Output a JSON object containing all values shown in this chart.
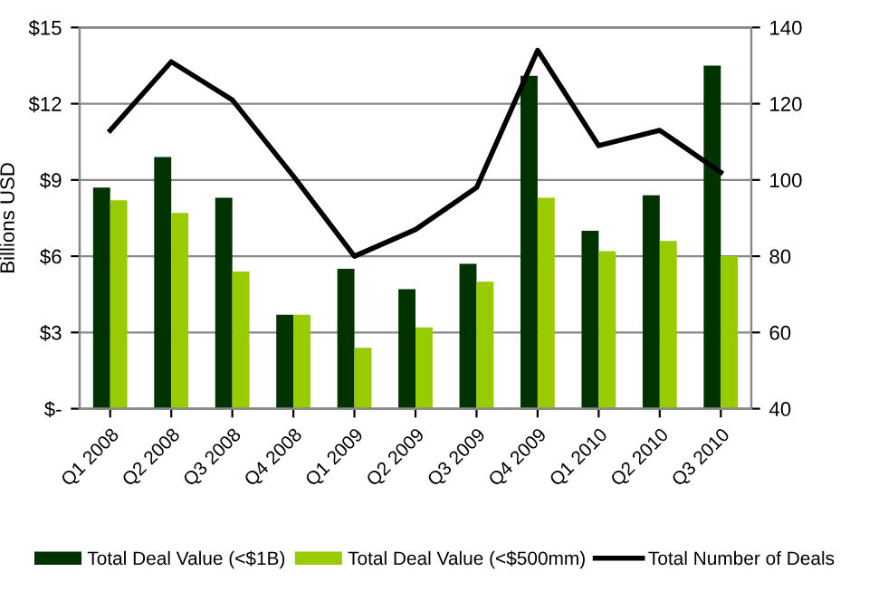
{
  "chart_data": {
    "type": "bar",
    "ylabel": "Billions USD",
    "categories": [
      "Q1 2008",
      "Q2 2008",
      "Q3 2008",
      "Q4 2008",
      "Q1 2009",
      "Q2 2009",
      "Q3 2009",
      "Q4 2009",
      "Q1 2010",
      "Q2 2010",
      "Q3 2010"
    ],
    "series": [
      {
        "name": "Total Deal Value (<$1B)",
        "color": "#003300",
        "values": [
          8.7,
          9.9,
          8.3,
          3.7,
          5.5,
          4.7,
          5.7,
          13.1,
          7.0,
          8.4,
          13.5
        ]
      },
      {
        "name": "Total Deal Value (<$500mm)",
        "color": "#99cc00",
        "values": [
          8.2,
          7.7,
          5.4,
          3.7,
          2.4,
          3.2,
          5.0,
          8.3,
          6.2,
          6.6,
          6.0
        ]
      },
      {
        "name": "Total Number of Deals",
        "type": "line",
        "axis": "y2",
        "color": "#000000",
        "values": [
          113,
          131,
          121,
          101,
          80,
          87,
          98,
          134,
          109,
          113,
          102
        ]
      }
    ],
    "ylim": [
      0,
      15
    ],
    "yticks": [
      {
        "value": 0,
        "label": "$-"
      },
      {
        "value": 3,
        "label": "$3"
      },
      {
        "value": 6,
        "label": "$6"
      },
      {
        "value": 9,
        "label": "$9"
      },
      {
        "value": 12,
        "label": "$12"
      },
      {
        "value": 15,
        "label": "$15"
      }
    ],
    "y2lim": [
      40,
      140
    ],
    "y2ticks": [
      40,
      60,
      80,
      100,
      120,
      140
    ],
    "grid": "y",
    "legend": "bottom",
    "marker": "none",
    "line_style": "solid"
  }
}
